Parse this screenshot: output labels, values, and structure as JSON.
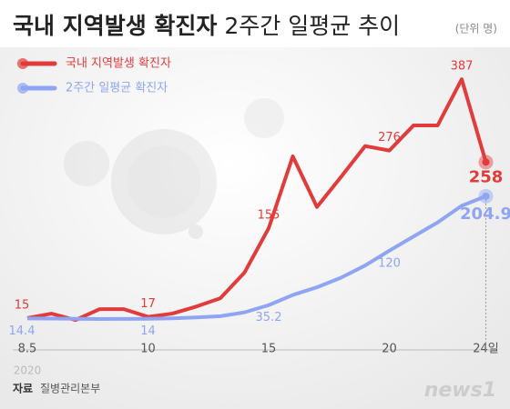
{
  "chart_data": {
    "type": "line",
    "title": "국내 지역발생 확진자",
    "title_suffix": "2주간 일평균 추이",
    "unit": "(단위 명)",
    "categories": [
      "8.5",
      null,
      null,
      null,
      null,
      "10",
      null,
      null,
      null,
      null,
      "15",
      null,
      null,
      null,
      null,
      "20",
      null,
      null,
      null,
      "24일"
    ],
    "year_label": "2020",
    "ylim": [
      0,
      400
    ],
    "series": [
      {
        "name": "국내 지역발생 확진자",
        "color": "#e23b3b",
        "values": [
          15,
          22,
          12,
          29,
          29,
          17,
          22,
          33,
          46,
          86,
          155,
          267,
          188,
          235,
          283,
          276,
          315,
          315,
          387,
          258
        ],
        "value_labels": [
          "15",
          null,
          null,
          null,
          null,
          "17",
          null,
          null,
          null,
          null,
          "155",
          null,
          null,
          null,
          null,
          "276",
          null,
          null,
          "387",
          "258"
        ]
      },
      {
        "name": "2주간 일평균 확진자",
        "color": "#8fa5f4",
        "values": [
          14.4,
          14.3,
          13.9,
          13.6,
          13.8,
          14,
          14.6,
          16,
          18,
          24,
          35.2,
          51,
          63,
          78,
          97,
          120,
          142,
          164,
          190,
          204.9
        ],
        "value_labels": [
          "14.4",
          null,
          null,
          null,
          null,
          "14",
          null,
          null,
          null,
          null,
          "35.2",
          null,
          null,
          null,
          null,
          "120",
          null,
          null,
          null,
          "204.9"
        ]
      }
    ],
    "source_label": "자료",
    "source": "질병관리본부",
    "logo": "news1"
  }
}
